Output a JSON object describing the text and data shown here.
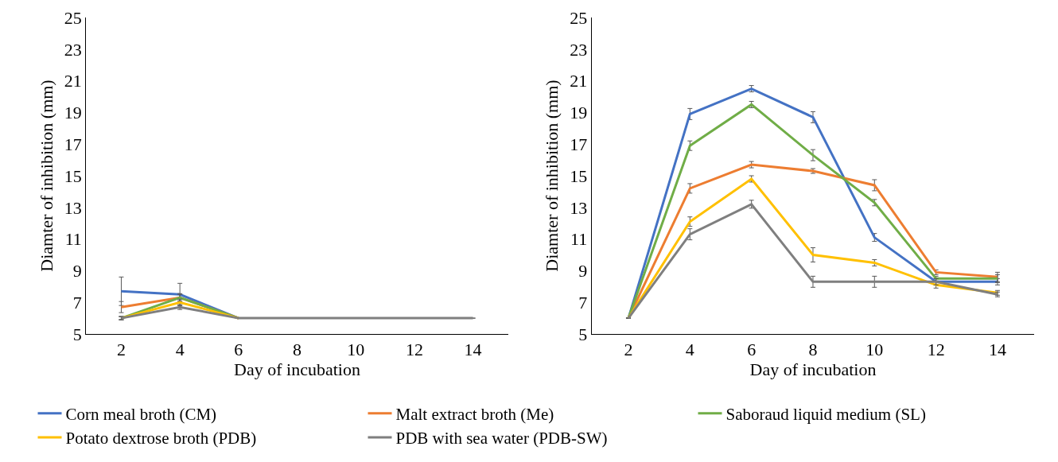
{
  "chart_data": [
    {
      "type": "line",
      "xlabel": "Day of incubation",
      "ylabel": "Diamter of inhibition (mm)",
      "categories": [
        "2",
        "4",
        "6",
        "8",
        "10",
        "12",
        "14"
      ],
      "ylim": [
        5,
        25
      ],
      "yticks": [
        5,
        7,
        9,
        11,
        13,
        15,
        17,
        19,
        21,
        23,
        25
      ],
      "legend": "bottom",
      "series": [
        {
          "name": "Corn meal broth (CM)",
          "color": "#4472c4",
          "values": [
            7.7,
            7.5,
            6,
            null,
            null,
            null,
            null
          ],
          "errors": [
            0.9,
            0.7,
            null,
            null,
            null,
            null,
            null
          ]
        },
        {
          "name": "Malt extract broth (Me)",
          "color": "#ed7d31",
          "values": [
            6.7,
            7.3,
            6,
            null,
            null,
            null,
            null
          ],
          "errors": [
            0.35,
            0.25,
            null,
            null,
            null,
            null,
            null
          ]
        },
        {
          "name": "Saboraud liquid medium (SL)",
          "color": "#70ad47",
          "values": [
            6.0,
            7.3,
            6,
            null,
            null,
            null,
            null
          ],
          "errors": [
            0.1,
            0.2,
            null,
            null,
            null,
            null,
            null
          ]
        },
        {
          "name": "Potato dextrose broth (PDB)",
          "color": "#ffc000",
          "values": [
            6.0,
            7.0,
            6,
            null,
            null,
            null,
            null
          ],
          "errors": [
            0.1,
            0.2,
            null,
            null,
            null,
            null,
            null
          ]
        },
        {
          "name": "PDB with sea water (PDB-SW)",
          "color": "#7f7f7f",
          "values": [
            6.0,
            6.7,
            6,
            6,
            6,
            6,
            6
          ],
          "errors": [
            0.1,
            0.15,
            null,
            null,
            null,
            null,
            null
          ]
        }
      ]
    },
    {
      "type": "line",
      "xlabel": "Day of incubation",
      "ylabel": "Diamter of inhibition (mm)",
      "categories": [
        "2",
        "4",
        "6",
        "8",
        "10",
        "12",
        "14"
      ],
      "ylim": [
        5,
        25
      ],
      "yticks": [
        5,
        7,
        9,
        11,
        13,
        15,
        17,
        19,
        21,
        23,
        25
      ],
      "series": [
        {
          "color": "#4472c4",
          "values": [
            6,
            18.9,
            20.5,
            18.7,
            11.1,
            8.3,
            8.3
          ],
          "errors": [
            null,
            0.35,
            0.2,
            0.35,
            0.25,
            0.2,
            0.2
          ]
        },
        {
          "color": "#ed7d31",
          "values": [
            6,
            14.2,
            15.7,
            15.3,
            14.4,
            8.9,
            8.6
          ],
          "errors": [
            null,
            0.3,
            0.2,
            0.15,
            0.35,
            0.15,
            0.3
          ]
        },
        {
          "color": "#70ad47",
          "values": [
            6,
            16.9,
            19.5,
            16.3,
            13.3,
            8.5,
            8.5
          ],
          "errors": [
            null,
            0.3,
            0.2,
            0.35,
            0.2,
            0.15,
            0.25
          ]
        },
        {
          "color": "#ffc000",
          "values": [
            6,
            12.1,
            14.8,
            10.0,
            9.5,
            8.1,
            7.6
          ],
          "errors": [
            null,
            0.3,
            0.2,
            0.45,
            0.2,
            0.2,
            0.15
          ]
        },
        {
          "color": "#7f7f7f",
          "values": [
            6,
            11.3,
            13.2,
            8.3,
            8.3,
            8.3,
            7.5
          ],
          "errors": [
            null,
            0.35,
            0.25,
            0.35,
            0.35,
            0.2,
            0.15
          ]
        }
      ]
    }
  ]
}
